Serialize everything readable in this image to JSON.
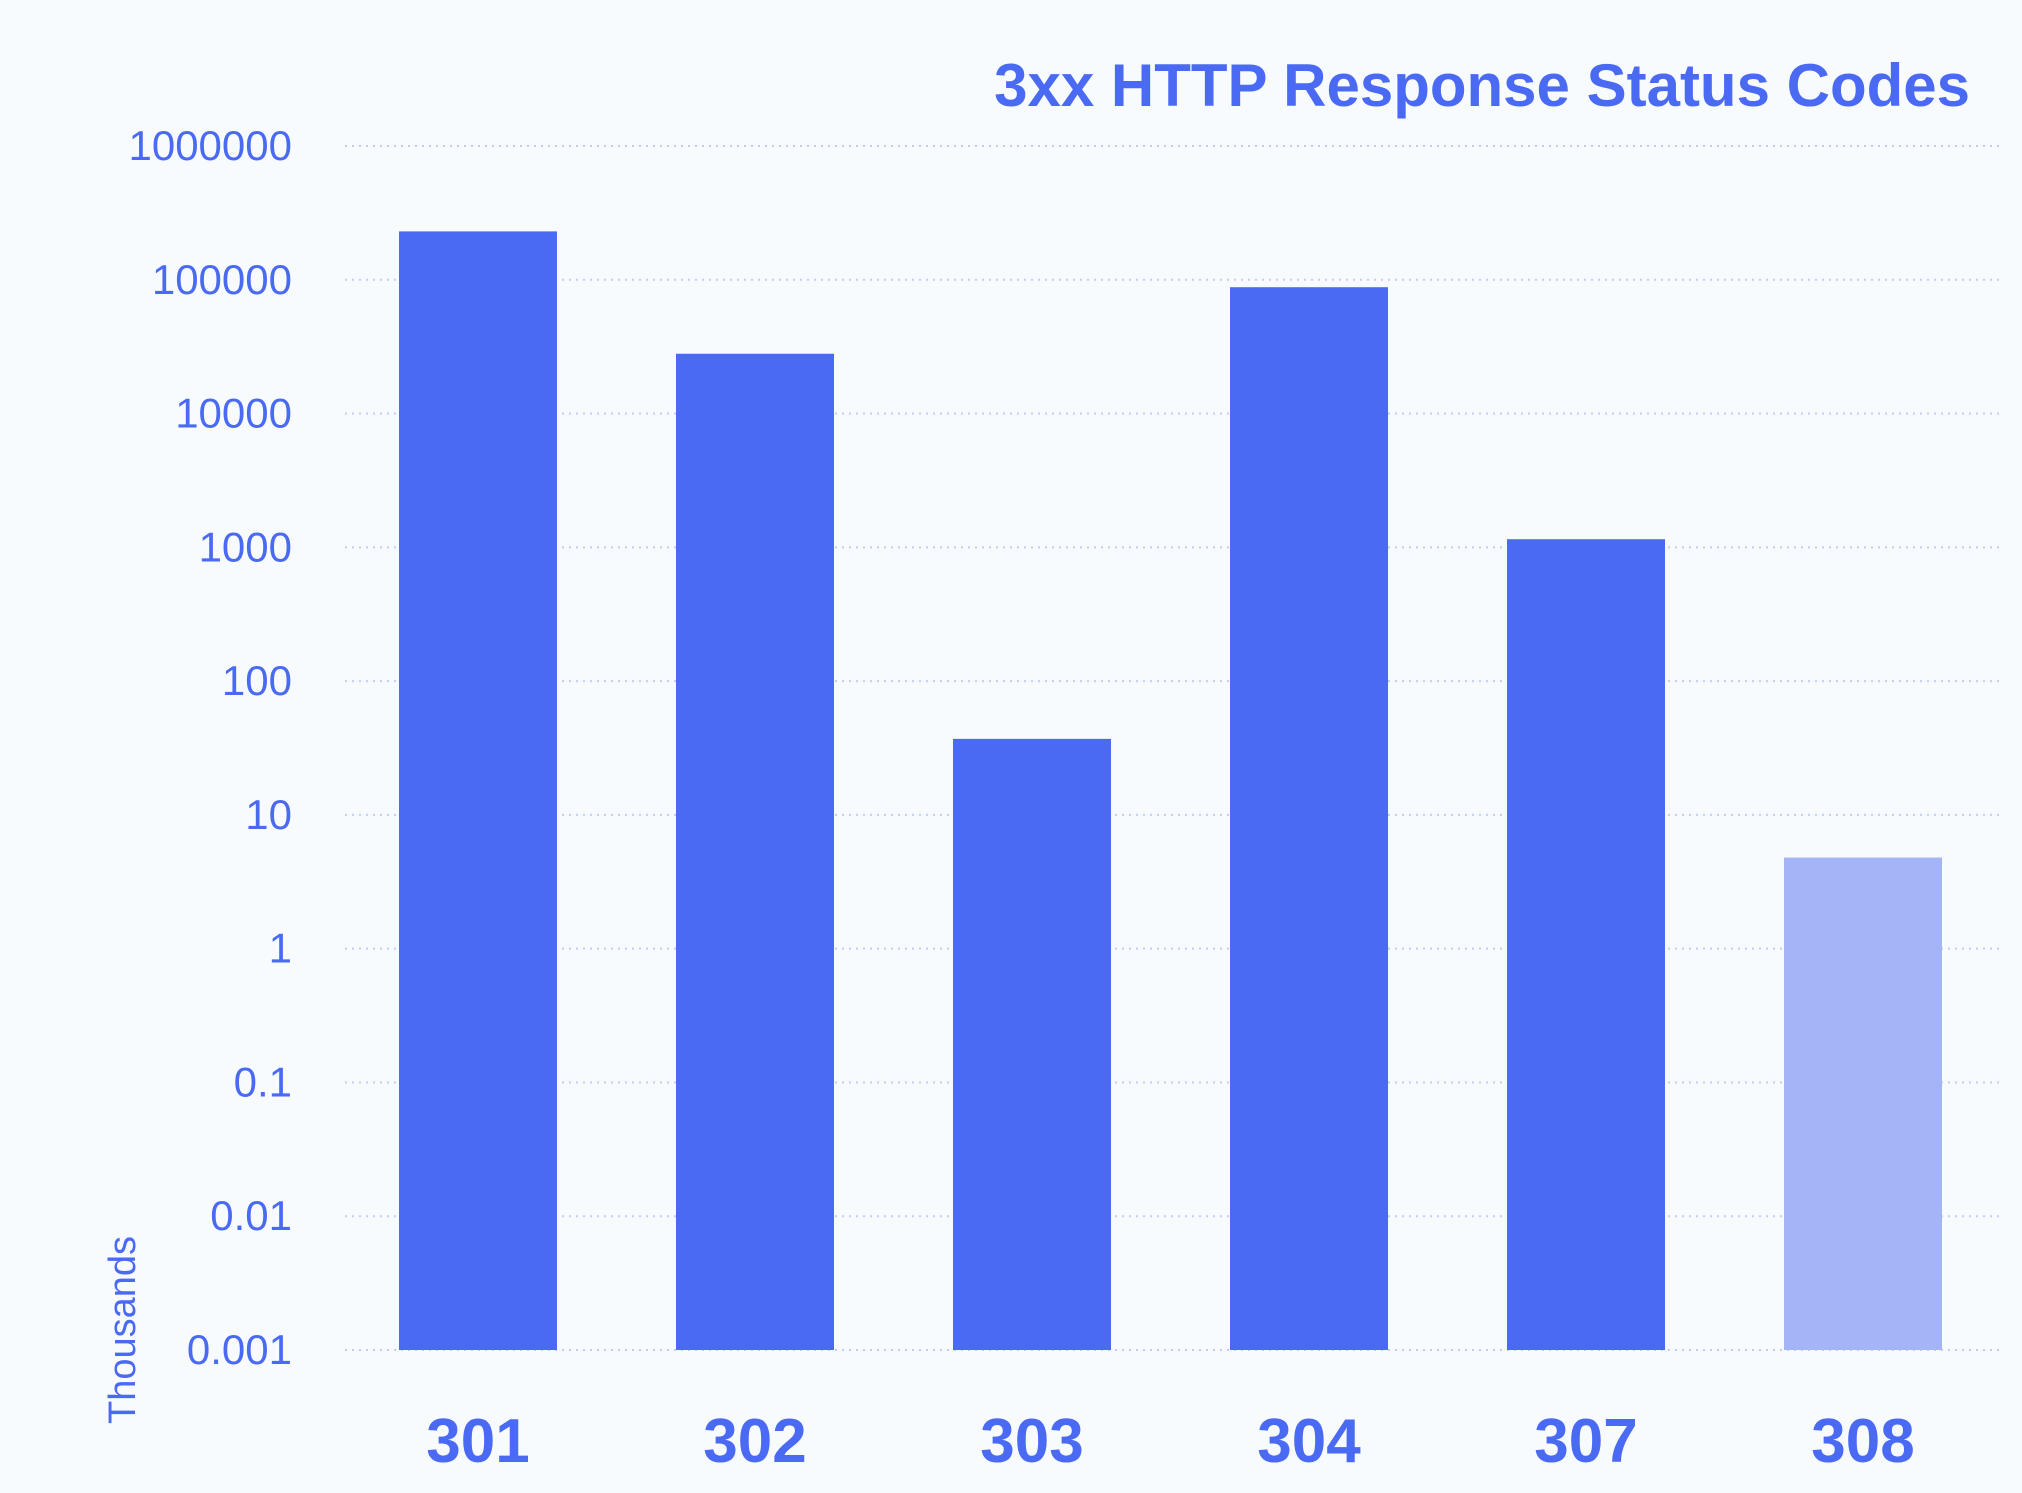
{
  "chart_data": {
    "type": "bar",
    "title": "3xx HTTP Response Status Codes",
    "xlabel": "",
    "ylabel": "Thousands",
    "yscale": "log",
    "ylim": [
      0.001,
      1000000
    ],
    "yticks": [
      "1000000",
      "100000",
      "10000",
      "1000",
      "100",
      "10",
      "1",
      "0.1",
      "0.01",
      "0.001"
    ],
    "grid": "horizontal dotted",
    "categories": [
      "301",
      "302",
      "303",
      "304",
      "307",
      "308"
    ],
    "values": [
      230000,
      28000,
      37,
      88000,
      1150,
      4.8
    ],
    "bar_colors": [
      "#4a6af4",
      "#4a6af4",
      "#4a6af4",
      "#4a6af4",
      "#4a6af4",
      "#a3b4f7"
    ],
    "text_color": "#4a6af4",
    "grid_color": "#c3cdf4"
  }
}
